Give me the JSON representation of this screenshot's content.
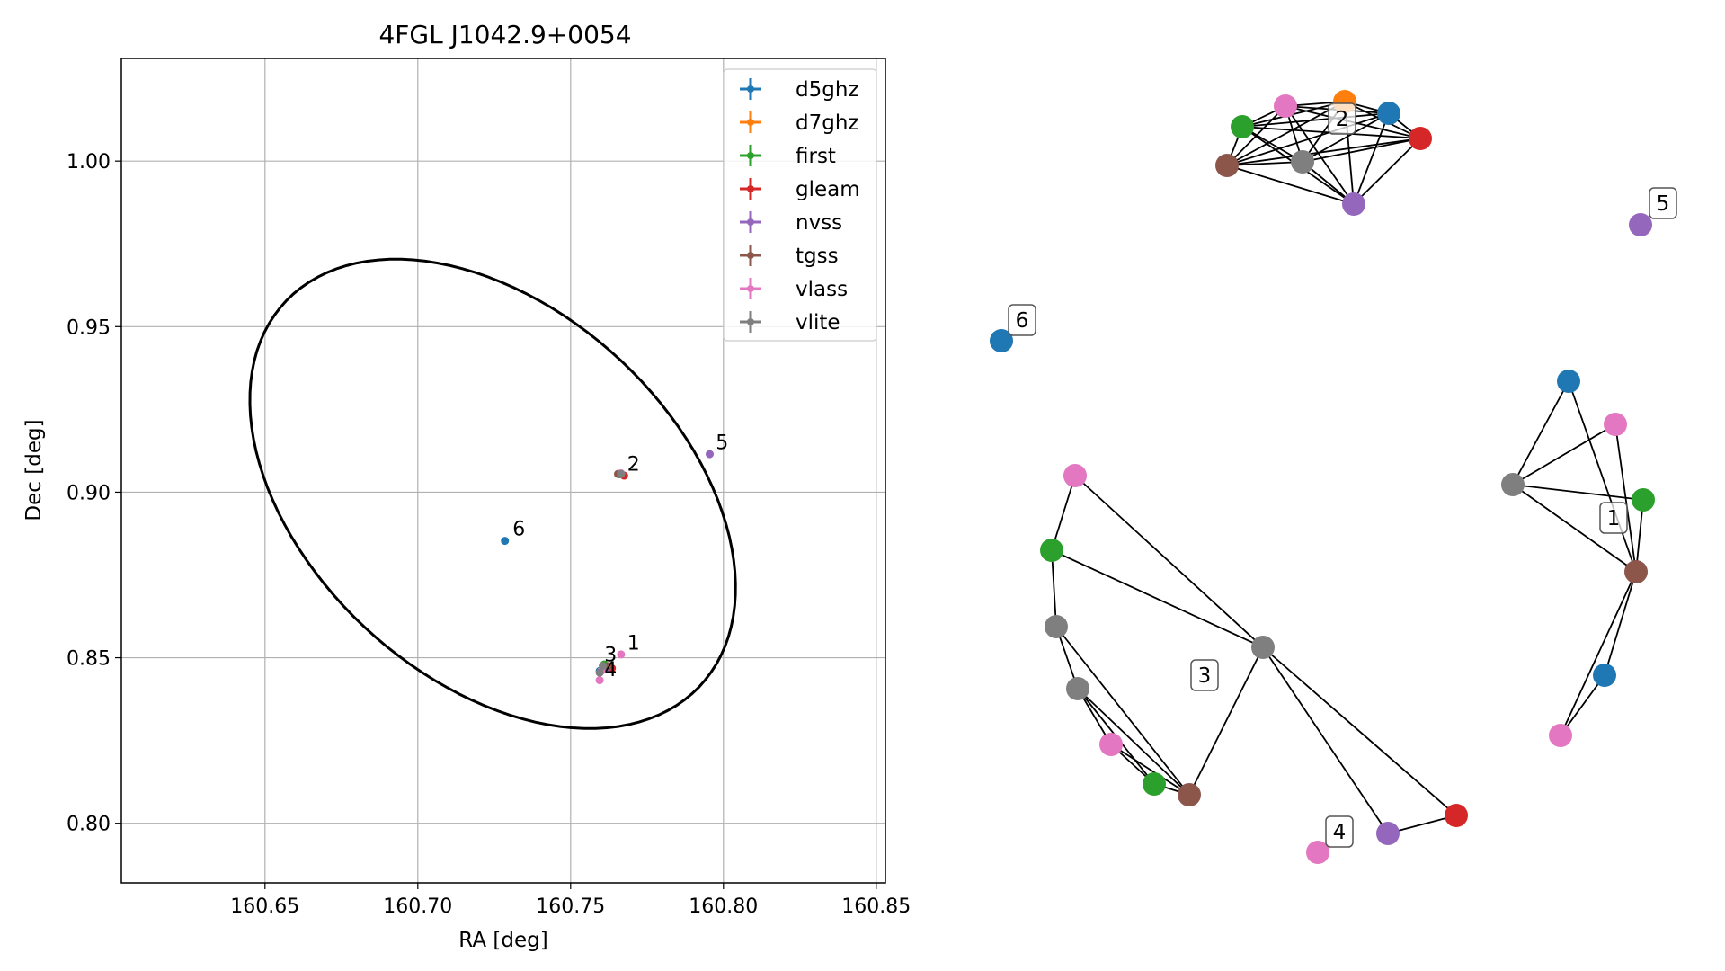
{
  "chart_data": [
    {
      "type": "scatter",
      "title": "4FGL J1042.9+0054",
      "xlabel": "RA [deg]",
      "ylabel": "Dec [deg]",
      "xlim": [
        160.603,
        160.853
      ],
      "ylim": [
        0.782,
        1.031
      ],
      "xticks": [
        160.65,
        160.7,
        160.75,
        160.8,
        160.85
      ],
      "xtick_labels": [
        "160.65",
        "160.70",
        "160.75",
        "160.80",
        "160.85"
      ],
      "yticks": [
        0.8,
        0.85,
        0.9,
        0.95,
        1.0
      ],
      "ytick_labels": [
        "0.80",
        "0.85",
        "0.90",
        "0.95",
        "1.00"
      ],
      "grid": true,
      "legend_position": "top-right",
      "ellipse": {
        "center_ra": 160.7245,
        "center_dec": 0.8995,
        "semi_major": 0.0895,
        "semi_minor": 0.0577,
        "angle_deg": -37
      },
      "series": [
        {
          "name": "d5ghz",
          "color": "#1f77b4",
          "points": [
            [
              160.7285,
              0.8853
            ],
            [
              160.7595,
              0.846
            ]
          ]
        },
        {
          "name": "d7ghz",
          "color": "#ff7f0e",
          "points": [
            [
              160.766,
              0.9056
            ]
          ]
        },
        {
          "name": "first",
          "color": "#2ca02c",
          "points": [
            [
              160.761,
              0.848
            ],
            [
              160.766,
              0.9054
            ]
          ]
        },
        {
          "name": "gleam",
          "color": "#d62728",
          "points": [
            [
              160.7675,
              0.905
            ],
            [
              160.7635,
              0.8468
            ]
          ]
        },
        {
          "name": "nvss",
          "color": "#9467bd",
          "points": [
            [
              160.7955,
              0.9115
            ],
            [
              160.762,
              0.847
            ]
          ]
        },
        {
          "name": "tgss",
          "color": "#8c564b",
          "points": [
            [
              160.7655,
              0.9055
            ],
            [
              160.7625,
              0.8475
            ]
          ]
        },
        {
          "name": "vlass",
          "color": "#e377c2",
          "points": [
            [
              160.7665,
              0.851
            ],
            [
              160.7595,
              0.8432
            ],
            [
              160.7665,
              0.9057
            ],
            [
              160.76,
              0.846
            ]
          ]
        },
        {
          "name": "vlite",
          "color": "#7f7f7f",
          "points": [
            [
              160.7665,
              0.9055
            ],
            [
              160.7605,
              0.8475
            ],
            [
              160.7595,
              0.8455
            ]
          ]
        }
      ],
      "cluster_labels": [
        {
          "text": "1",
          "ra": 160.7685,
          "dec": 0.8525
        },
        {
          "text": "2",
          "ra": 160.7685,
          "dec": 0.9065
        },
        {
          "text": "3",
          "ra": 160.761,
          "dec": 0.849
        },
        {
          "text": "4",
          "ra": 160.761,
          "dec": 0.8445
        },
        {
          "text": "5",
          "ra": 160.7975,
          "dec": 0.913
        },
        {
          "text": "6",
          "ra": 160.731,
          "dec": 0.887
        }
      ]
    },
    {
      "type": "network",
      "groups": [
        {
          "label": "1",
          "nodes": [
            "blue",
            "pink",
            "gray",
            "green",
            "brown",
            "blue",
            "pink"
          ],
          "edges": [
            [
              0,
              2
            ],
            [
              0,
              4
            ],
            [
              1,
              2
            ],
            [
              1,
              4
            ],
            [
              2,
              3
            ],
            [
              2,
              4
            ],
            [
              3,
              4
            ],
            [
              4,
              5
            ],
            [
              4,
              6
            ],
            [
              5,
              6
            ]
          ]
        },
        {
          "label": "2",
          "nodes": [
            "pink",
            "orange",
            "blue",
            "green",
            "red",
            "brown",
            "gray",
            "purple"
          ],
          "edges": "complete"
        },
        {
          "label": "3",
          "nodes": [
            "pink",
            "green",
            "gray",
            "gray",
            "pink",
            "green",
            "brown",
            "gray",
            "purple",
            "red"
          ]
        },
        {
          "label": "4",
          "nodes": [
            "pink"
          ]
        },
        {
          "label": "5",
          "nodes": [
            "purple"
          ]
        },
        {
          "label": "6",
          "nodes": [
            "blue"
          ]
        }
      ]
    }
  ],
  "colors": {
    "blue": "#1f77b4",
    "orange": "#ff7f0e",
    "green": "#2ca02c",
    "red": "#d62728",
    "purple": "#9467bd",
    "brown": "#8c564b",
    "pink": "#e377c2",
    "gray": "#7f7f7f"
  }
}
